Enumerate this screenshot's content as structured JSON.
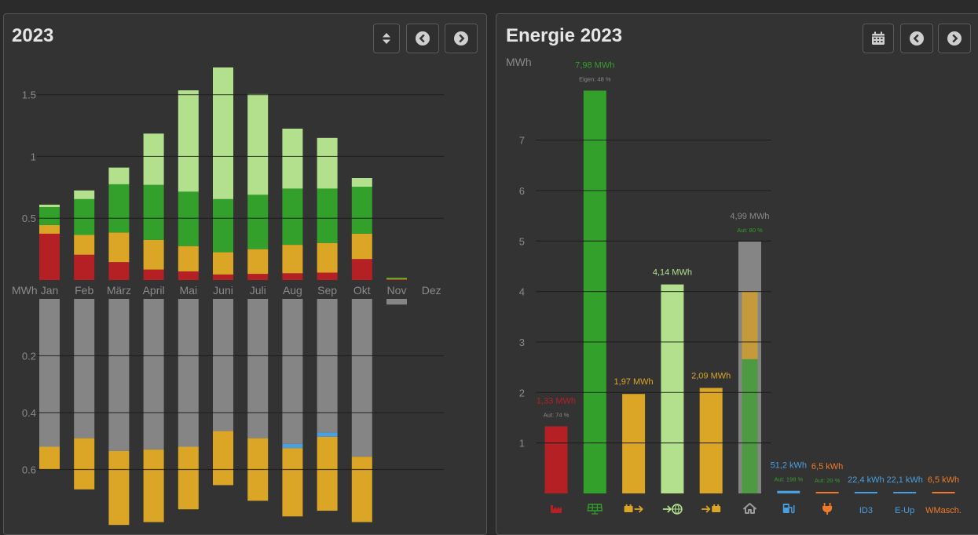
{
  "colors": {
    "grid": "#1c1c1c",
    "axis_text": "#8a8a8a",
    "grid_red": "#b52025",
    "battery_orange": "#dba526",
    "pv_green": "#33a02c",
    "feed_in_lightgreen": "#b2e08d",
    "house_gray": "#858585",
    "ev_blue": "#4a9fe0",
    "plug_orange": "#f07a2a"
  },
  "left": {
    "title": "2023",
    "buttons": {
      "toggle_icon": "sort-icon",
      "prev_icon": "chevron-left-icon",
      "next_icon": "chevron-right-icon"
    },
    "chart_data": {
      "type": "bar",
      "stacked": true,
      "unit_label": "MWh",
      "categories": [
        "Jan",
        "Feb",
        "März",
        "April",
        "Mai",
        "Juni",
        "Juli",
        "Aug",
        "Sep",
        "Okt",
        "Nov",
        "Dez"
      ],
      "y_top_ticks": [
        "1.5",
        "1",
        "0.5"
      ],
      "y_top_tick_values": [
        1.5,
        1.0,
        0.5
      ],
      "y_top_range": [
        0,
        1.72
      ],
      "y_bottom_ticks": [
        "0.2",
        "0.4",
        "0.6"
      ],
      "y_bottom_tick_values": [
        0.2,
        0.4,
        0.6
      ],
      "y_bottom_range": [
        0,
        0.8
      ],
      "series_top": [
        {
          "name": "grid",
          "color_key": "grid_red",
          "values": [
            0.375,
            0.205,
            0.145,
            0.085,
            0.07,
            0.045,
            0.05,
            0.055,
            0.06,
            0.17,
            0.01,
            0
          ]
        },
        {
          "name": "battery",
          "color_key": "battery_orange",
          "values": [
            0.07,
            0.16,
            0.24,
            0.24,
            0.205,
            0.18,
            0.2,
            0.23,
            0.24,
            0.205,
            0.005,
            0
          ]
        },
        {
          "name": "self_pv",
          "color_key": "pv_green",
          "values": [
            0.145,
            0.29,
            0.39,
            0.445,
            0.44,
            0.43,
            0.44,
            0.455,
            0.44,
            0.38,
            0.005,
            0
          ]
        },
        {
          "name": "feed_in",
          "color_key": "feed_in_lightgreen",
          "values": [
            0.02,
            0.07,
            0.135,
            0.415,
            0.82,
            1.065,
            0.815,
            0.485,
            0.41,
            0.07,
            0,
            0
          ]
        }
      ],
      "series_bottom": [
        {
          "name": "house",
          "color_key": "house_gray",
          "values": [
            0.52,
            0.49,
            0.535,
            0.53,
            0.52,
            0.465,
            0.49,
            0.51,
            0.47,
            0.555,
            0.02,
            0
          ]
        },
        {
          "name": "ev",
          "color_key": "ev_blue",
          "values": [
            0,
            0,
            0,
            0,
            0,
            0,
            0,
            0.015,
            0.015,
            0,
            0,
            0
          ]
        },
        {
          "name": "battery_charge",
          "color_key": "battery_orange",
          "values": [
            0.08,
            0.18,
            0.26,
            0.255,
            0.22,
            0.19,
            0.22,
            0.24,
            0.26,
            0.23,
            0,
            0
          ]
        }
      ]
    }
  },
  "right": {
    "title": "Energie 2023",
    "buttons": {
      "calendar_icon": "calendar-icon",
      "prev_icon": "chevron-left-icon",
      "next_icon": "chevron-right-icon"
    },
    "chart_data": {
      "type": "bar",
      "unit_label": "MWh",
      "y_ticks": [
        "1",
        "2",
        "3",
        "4",
        "5",
        "6",
        "7"
      ],
      "y_tick_values": [
        1,
        2,
        3,
        4,
        5,
        6,
        7
      ],
      "y_range": [
        0,
        8.05
      ],
      "bars": [
        {
          "id": "grid",
          "icon": "factory-icon",
          "value": 1.33,
          "label": "1,33 MWh",
          "sub": "Aut: 74 %",
          "color_key": "grid_red",
          "label_color_key": "grid_red"
        },
        {
          "id": "pv",
          "icon": "solar-panel-icon",
          "value": 7.98,
          "label": "7,98 MWh",
          "sub": "Eigen: 48 %",
          "color_key": "pv_green",
          "label_color_key": "pv_green"
        },
        {
          "id": "battery-out",
          "icon": "battery-discharge-icon",
          "value": 1.97,
          "label": "1,97 MWh",
          "sub": "",
          "color_key": "battery_orange",
          "label_color_key": "battery_orange"
        },
        {
          "id": "feed-in",
          "icon": "grid-export-icon",
          "value": 4.14,
          "label": "4,14 MWh",
          "sub": "",
          "color_key": "feed_in_lightgreen",
          "label_color_key": "feed_in_lightgreen"
        },
        {
          "id": "battery-in",
          "icon": "battery-charge-icon",
          "value": 2.09,
          "label": "2,09 MWh",
          "sub": "",
          "color_key": "battery_orange",
          "label_color_key": "battery_orange"
        },
        {
          "id": "house",
          "icon": "house-icon",
          "value": 4.99,
          "label": "4,99 MWh",
          "sub": "Aut: 80 %",
          "color_key": "house_gray",
          "label_color_key": "axis_text",
          "inner": [
            {
              "value": 2.66,
              "color": "#4e9a43"
            },
            {
              "value": 1.34,
              "color": "#c59a3a"
            }
          ]
        },
        {
          "id": "ev-charger",
          "icon": "ev-charger-icon",
          "value": 0.0512,
          "label": "51,2 kWh",
          "sub": "Aut: 198 %",
          "color_key": "ev_blue",
          "label_color_key": "ev_blue"
        },
        {
          "id": "plug",
          "icon": "plug-icon",
          "value": 0.0065,
          "label": "6,5 kWh",
          "sub": "Aut: 20 %",
          "color_key": "plug_orange",
          "label_color_key": "plug_orange"
        },
        {
          "id": "id3",
          "icon": "",
          "bottom_label": "ID3",
          "value": 0.0224,
          "label": "22,4 kWh",
          "sub": "",
          "color_key": "ev_blue",
          "label_color_key": "ev_blue"
        },
        {
          "id": "e-up",
          "icon": "",
          "bottom_label": "E-Up",
          "value": 0.0221,
          "label": "22,1 kWh",
          "sub": "",
          "color_key": "ev_blue",
          "label_color_key": "ev_blue"
        },
        {
          "id": "wmasch",
          "icon": "",
          "bottom_label": "WMasch.",
          "value": 0.0065,
          "label": "6,5 kWh",
          "sub": "",
          "color_key": "plug_orange",
          "label_color_key": "plug_orange"
        }
      ]
    }
  }
}
